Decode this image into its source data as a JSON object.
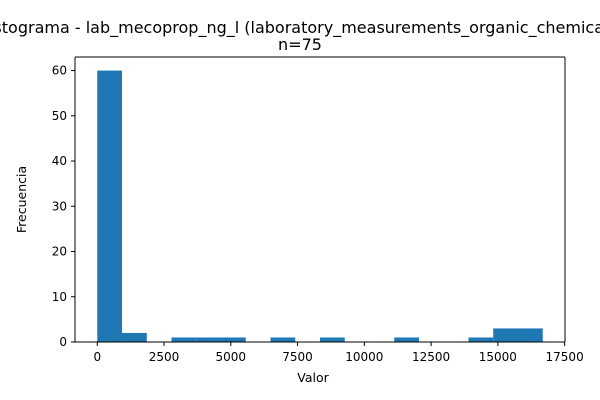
{
  "chart_data": {
    "type": "bar",
    "title": "Histograma - lab_mecoprop_ng_l (laboratory_measurements_organic_chemicals)",
    "subtitle": "n=75",
    "xlabel": "Valor",
    "ylabel": "Frecuencia",
    "bin_edges": [
      0,
      926.7,
      1853.3,
      2780,
      3706.7,
      4633.3,
      5560,
      6486.7,
      7413.3,
      8340,
      9266.7,
      10193.3,
      11120,
      12046.7,
      12973.3,
      13900,
      14826.7,
      15753.3,
      16680
    ],
    "values": [
      60,
      2,
      0,
      1,
      1,
      1,
      0,
      1,
      0,
      1,
      0,
      0,
      1,
      0,
      0,
      1,
      3,
      3
    ],
    "xlim": [
      -834,
      17514
    ],
    "ylim": [
      0,
      63
    ],
    "xticks": [
      0,
      2500,
      5000,
      7500,
      10000,
      12500,
      15000,
      17500
    ],
    "yticks": [
      0,
      10,
      20,
      30,
      40,
      50,
      60
    ],
    "xtick_labels": [
      "0",
      "2500",
      "5000",
      "7500",
      "10000",
      "12500",
      "15000",
      "17500"
    ],
    "ytick_labels": [
      "0",
      "10",
      "20",
      "30",
      "40",
      "50",
      "60"
    ],
    "grid": false,
    "colors": {
      "bar": "#1f77b4",
      "axis": "#000000",
      "background": "#ffffff"
    }
  }
}
